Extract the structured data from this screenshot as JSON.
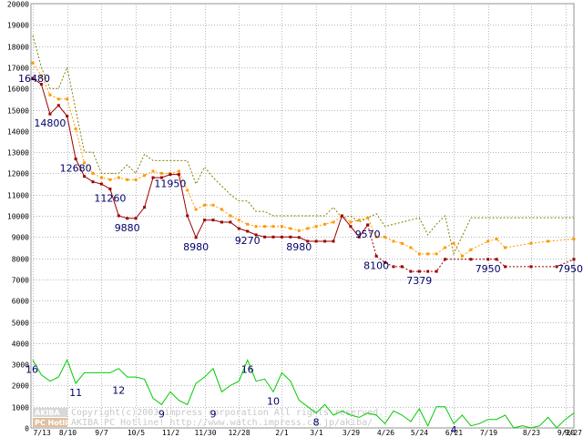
{
  "chart_data": {
    "type": "line",
    "ylim": [
      0,
      20000
    ],
    "yticks": [
      0,
      1000,
      2000,
      3000,
      4000,
      5000,
      6000,
      7000,
      8000,
      9000,
      10000,
      11000,
      12000,
      13000,
      14000,
      15000,
      16000,
      17000,
      18000,
      19000,
      20000
    ],
    "x_tick_labels": [
      {
        "w": 0,
        "label": "7/13"
      },
      {
        "w": 4,
        "label": "8/10"
      },
      {
        "w": 8,
        "label": "9/7"
      },
      {
        "w": 12,
        "label": "10/5"
      },
      {
        "w": 16,
        "label": "11/2"
      },
      {
        "w": 20,
        "label": "11/30"
      },
      {
        "w": 24,
        "label": "12/28"
      },
      {
        "w": 29,
        "label": "2/1"
      },
      {
        "w": 33,
        "label": "3/1"
      },
      {
        "w": 37,
        "label": "3/29"
      },
      {
        "w": 41,
        "label": "4/26"
      },
      {
        "w": 45,
        "label": "5/24"
      },
      {
        "w": 49,
        "label": "6/21"
      },
      {
        "w": 53,
        "label": "7/19"
      },
      {
        "w": 58,
        "label": "8/23"
      },
      {
        "w": 62,
        "label": "9/20"
      },
      {
        "w": 63,
        "label": "9/27"
      }
    ],
    "series": [
      {
        "color": "#808000",
        "dash": "2,2",
        "markers": false,
        "points": [
          [
            0,
            18500
          ],
          [
            1,
            17000
          ],
          [
            2,
            16000
          ],
          [
            3,
            16000
          ],
          [
            4,
            17000
          ],
          [
            5,
            15000
          ],
          [
            6,
            13000
          ],
          [
            7,
            13000
          ],
          [
            8,
            12000
          ],
          [
            9,
            12000
          ],
          [
            10,
            12000
          ],
          [
            11,
            12400
          ],
          [
            12,
            12000
          ],
          [
            13,
            12900
          ],
          [
            14,
            12600
          ],
          [
            15,
            12600
          ],
          [
            16,
            12600
          ],
          [
            17,
            12600
          ],
          [
            18,
            12600
          ],
          [
            19,
            11500
          ],
          [
            20,
            12300
          ],
          [
            21,
            11800
          ],
          [
            22,
            11400
          ],
          [
            23,
            11000
          ],
          [
            24,
            10700
          ],
          [
            25,
            10700
          ],
          [
            26,
            10200
          ],
          [
            27,
            10200
          ],
          [
            28,
            10000
          ],
          [
            29,
            10000
          ],
          [
            30,
            10000
          ],
          [
            31,
            10000
          ],
          [
            32,
            10000
          ],
          [
            33,
            10000
          ],
          [
            34,
            10000
          ],
          [
            35,
            10400
          ],
          [
            36,
            9900
          ],
          [
            37,
            10000
          ],
          [
            38,
            9700
          ],
          [
            39,
            9900
          ],
          [
            40,
            10100
          ],
          [
            41,
            9500
          ],
          [
            43,
            9700
          ],
          [
            45,
            9900
          ],
          [
            46,
            9100
          ],
          [
            47,
            9600
          ],
          [
            48,
            10000
          ],
          [
            49,
            8200
          ],
          [
            51,
            9900
          ],
          [
            56,
            9900
          ],
          [
            63,
            9900
          ]
        ]
      },
      {
        "color": "#ff9900",
        "dash": "2,2",
        "markers": true,
        "points": [
          [
            0,
            17200
          ],
          [
            1,
            16600
          ],
          [
            2,
            15700
          ],
          [
            3,
            15500
          ],
          [
            4,
            15500
          ],
          [
            5,
            14100
          ],
          [
            6,
            12500
          ],
          [
            7,
            12000
          ],
          [
            8,
            11800
          ],
          [
            9,
            11700
          ],
          [
            10,
            11800
          ],
          [
            11,
            11700
          ],
          [
            12,
            11700
          ],
          [
            13,
            11900
          ],
          [
            14,
            12100
          ],
          [
            15,
            12000
          ],
          [
            16,
            12000
          ],
          [
            17,
            12100
          ],
          [
            18,
            11200
          ],
          [
            19,
            10300
          ],
          [
            20,
            10500
          ],
          [
            21,
            10500
          ],
          [
            22,
            10300
          ],
          [
            23,
            10000
          ],
          [
            24,
            9800
          ],
          [
            25,
            9600
          ],
          [
            26,
            9500
          ],
          [
            27,
            9500
          ],
          [
            28,
            9500
          ],
          [
            29,
            9500
          ],
          [
            30,
            9400
          ],
          [
            31,
            9300
          ],
          [
            32,
            9400
          ],
          [
            33,
            9500
          ],
          [
            34,
            9600
          ],
          [
            35,
            9700
          ],
          [
            36,
            10000
          ],
          [
            37,
            9700
          ],
          [
            38,
            9800
          ],
          [
            39,
            9900
          ],
          [
            40,
            9000
          ],
          [
            41,
            9000
          ],
          [
            42,
            8800
          ],
          [
            43,
            8700
          ],
          [
            44,
            8500
          ],
          [
            45,
            8200
          ],
          [
            46,
            8200
          ],
          [
            47,
            8200
          ],
          [
            48,
            8500
          ],
          [
            49,
            8700
          ],
          [
            50,
            8100
          ],
          [
            51,
            8400
          ],
          [
            53,
            8800
          ],
          [
            54,
            8900
          ],
          [
            55,
            8500
          ],
          [
            58,
            8700
          ],
          [
            60,
            8800
          ],
          [
            63,
            8900
          ]
        ]
      },
      {
        "color": "#990000",
        "dash": "",
        "markers": true,
        "points": [
          [
            0,
            16480
          ],
          [
            1,
            16200
          ],
          [
            2,
            14800
          ],
          [
            3,
            15200
          ],
          [
            4,
            14700
          ],
          [
            5,
            12680
          ],
          [
            6,
            11860
          ],
          [
            7,
            11600
          ],
          [
            8,
            11500
          ],
          [
            9,
            11260
          ],
          [
            10,
            10000
          ],
          [
            11,
            9880
          ],
          [
            12,
            9880
          ],
          [
            13,
            10400
          ],
          [
            14,
            11800
          ],
          [
            15,
            11800
          ],
          [
            16,
            11950
          ],
          [
            17,
            11950
          ],
          [
            18,
            10000
          ],
          [
            19,
            8980
          ],
          [
            20,
            9800
          ],
          [
            21,
            9800
          ],
          [
            22,
            9700
          ],
          [
            23,
            9700
          ],
          [
            24,
            9400
          ],
          [
            25,
            9270
          ],
          [
            26,
            9100
          ],
          [
            27,
            9000
          ],
          [
            28,
            9000
          ],
          [
            29,
            9000
          ],
          [
            30,
            9000
          ],
          [
            31,
            8980
          ],
          [
            32,
            8800
          ],
          [
            33,
            8800
          ],
          [
            34,
            8800
          ],
          [
            35,
            8800
          ],
          [
            36,
            10000
          ],
          [
            37,
            9500
          ],
          [
            38,
            9000
          ],
          [
            39,
            9570
          ]
        ]
      },
      {
        "color": "#990000",
        "dash": "2,2",
        "markers": true,
        "points": [
          [
            39,
            9570
          ],
          [
            40,
            8100
          ],
          [
            41,
            7800
          ],
          [
            42,
            7600
          ],
          [
            43,
            7600
          ],
          [
            44,
            7379
          ],
          [
            45,
            7379
          ],
          [
            46,
            7379
          ],
          [
            47,
            7379
          ],
          [
            48,
            7950
          ],
          [
            51,
            7950
          ],
          [
            53,
            7950
          ],
          [
            54,
            7950
          ],
          [
            55,
            7600
          ],
          [
            58,
            7600
          ],
          [
            61,
            7600
          ],
          [
            63,
            7950
          ]
        ]
      },
      {
        "color": "#00cc00",
        "dash": "",
        "markers": false,
        "points": [
          [
            0,
            3200
          ],
          [
            1,
            2500
          ],
          [
            2,
            2200
          ],
          [
            3,
            2400
          ],
          [
            4,
            3200
          ],
          [
            5,
            2100
          ],
          [
            6,
            2600
          ],
          [
            7,
            2600
          ],
          [
            8,
            2600
          ],
          [
            9,
            2600
          ],
          [
            10,
            2800
          ],
          [
            11,
            2400
          ],
          [
            12,
            2400
          ],
          [
            13,
            2300
          ],
          [
            14,
            1400
          ],
          [
            15,
            1100
          ],
          [
            16,
            1700
          ],
          [
            17,
            1300
          ],
          [
            18,
            1100
          ],
          [
            19,
            2100
          ],
          [
            20,
            2400
          ],
          [
            21,
            2800
          ],
          [
            22,
            1700
          ],
          [
            23,
            2000
          ],
          [
            24,
            2200
          ],
          [
            25,
            3200
          ],
          [
            26,
            2200
          ],
          [
            27,
            2300
          ],
          [
            28,
            1700
          ],
          [
            29,
            2600
          ],
          [
            30,
            2200
          ],
          [
            31,
            1300
          ],
          [
            32,
            1000
          ],
          [
            33,
            700
          ],
          [
            34,
            1100
          ],
          [
            35,
            600
          ],
          [
            36,
            800
          ],
          [
            37,
            600
          ],
          [
            38,
            500
          ],
          [
            39,
            700
          ],
          [
            40,
            600
          ],
          [
            41,
            200
          ],
          [
            42,
            800
          ],
          [
            43,
            600
          ],
          [
            44,
            300
          ],
          [
            45,
            900
          ],
          [
            46,
            100
          ],
          [
            47,
            1000
          ],
          [
            48,
            1000
          ],
          [
            49,
            200
          ],
          [
            50,
            600
          ],
          [
            51,
            100
          ],
          [
            52,
            200
          ],
          [
            53,
            400
          ],
          [
            54,
            400
          ],
          [
            55,
            600
          ],
          [
            56,
            0
          ],
          [
            57,
            100
          ],
          [
            58,
            0
          ],
          [
            59,
            100
          ],
          [
            60,
            500
          ],
          [
            61,
            0
          ],
          [
            62,
            400
          ],
          [
            63,
            700
          ]
        ]
      }
    ],
    "data_labels": [
      {
        "text": "16480",
        "w": 0,
        "y": 16480
      },
      {
        "text": "14800",
        "w": 2,
        "y": 14800
      },
      {
        "text": "12680",
        "w": 5,
        "y": 12680
      },
      {
        "text": "11260",
        "w": 9,
        "y": 11260
      },
      {
        "text": "9880",
        "w": 11,
        "y": 9880
      },
      {
        "text": "11950",
        "w": 16,
        "y": 11950
      },
      {
        "text": "8980",
        "w": 19,
        "y": 8980
      },
      {
        "text": "9270",
        "w": 25,
        "y": 9270
      },
      {
        "text": "8980",
        "w": 31,
        "y": 8980
      },
      {
        "text": "9570",
        "w": 39,
        "y": 9570
      },
      {
        "text": "8100",
        "w": 40,
        "y": 8100
      },
      {
        "text": "7379",
        "w": 45,
        "y": 7379
      },
      {
        "text": "7950",
        "w": 53,
        "y": 7950
      },
      {
        "text": "7950",
        "w": 63,
        "y": 7950
      },
      {
        "text": "16",
        "w": 0,
        "y": 3200
      },
      {
        "text": "11",
        "w": 5,
        "y": 2100
      },
      {
        "text": "12",
        "w": 10,
        "y": 2200
      },
      {
        "text": "9",
        "w": 15,
        "y": 1100
      },
      {
        "text": "9",
        "w": 21,
        "y": 1100
      },
      {
        "text": "16",
        "w": 25,
        "y": 3200
      },
      {
        "text": "10",
        "w": 28,
        "y": 1700
      },
      {
        "text": "8",
        "w": 33,
        "y": 700
      },
      {
        "text": "4",
        "w": 49,
        "y": 200
      }
    ],
    "watermark": {
      "line1": "Copyright(c)2003 impress corporation All rights reserved.",
      "line2": "AKIBA PC Hotline!  http://www.watch.impress.co.jp/akiba/",
      "box1": "AKIBA",
      "box2": "PC Hotline"
    }
  }
}
